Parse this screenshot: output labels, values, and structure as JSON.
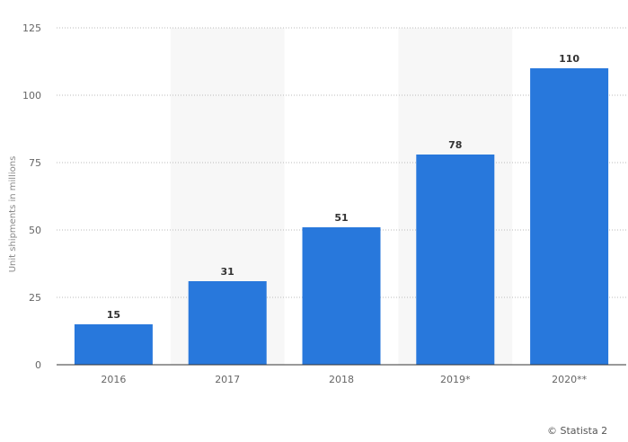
{
  "chart_data": {
    "type": "bar",
    "categories": [
      "2016",
      "2017",
      "2018",
      "2019*",
      "2020**"
    ],
    "series": [
      {
        "values": [
          15,
          31,
          51,
          78,
          110
        ]
      }
    ],
    "data_labels": [
      "15",
      "31",
      "51",
      "78",
      "110"
    ],
    "ylabel": "Unit shipments in millions",
    "xlabel": "",
    "ylim": [
      0,
      125
    ],
    "yticks": [
      0,
      25,
      50,
      75,
      100,
      125
    ],
    "grid": true,
    "bar_color": "#2878dc",
    "band_color": "#f7f7f7",
    "grid_color": "#bbbbbb"
  },
  "credit": "© Statista 2"
}
